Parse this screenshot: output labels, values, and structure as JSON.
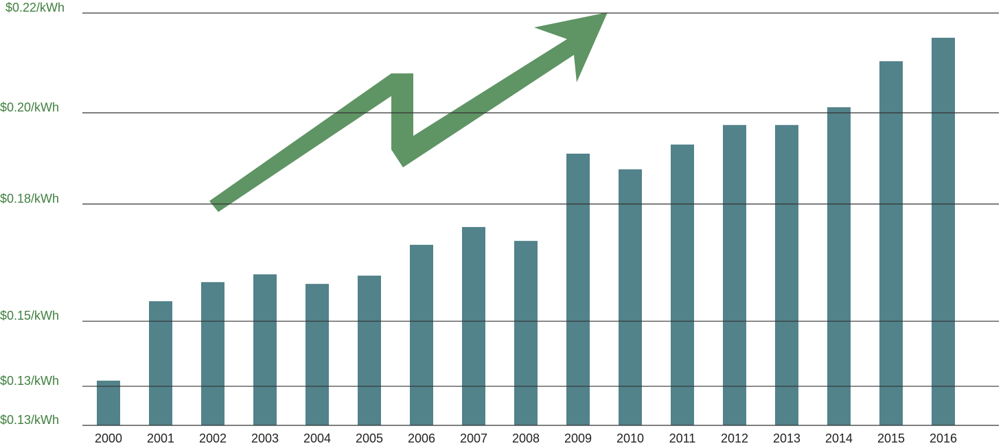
{
  "chart_data": {
    "type": "bar",
    "categories": [
      "2000",
      "2001",
      "2002",
      "2003",
      "2004",
      "2005",
      "2006",
      "2007",
      "2008",
      "2009",
      "2010",
      "2011",
      "2012",
      "2013",
      "2014",
      "2015",
      "2016"
    ],
    "values": [
      0.1353,
      0.1536,
      0.158,
      0.1598,
      0.1576,
      0.1595,
      0.1666,
      0.1707,
      0.1675,
      0.1876,
      0.184,
      0.1897,
      0.1942,
      0.1942,
      0.1983,
      0.2089,
      0.2143
    ],
    "color": "#52828a",
    "ylim": [
      0.125,
      0.22
    ],
    "yticks": [
      {
        "value": 0.125,
        "label": "$0.13/kWh"
      },
      {
        "value": 0.134,
        "label": "$0.13/kWh"
      },
      {
        "value": 0.149,
        "label": "$0.15/kWh"
      },
      {
        "value": 0.176,
        "label": "$0.18/kWh"
      },
      {
        "value": 0.197,
        "label": "$0.20/kWh"
      },
      {
        "value": 0.22,
        "label": "$0.22/kWh"
      }
    ],
    "grid": true
  }
}
